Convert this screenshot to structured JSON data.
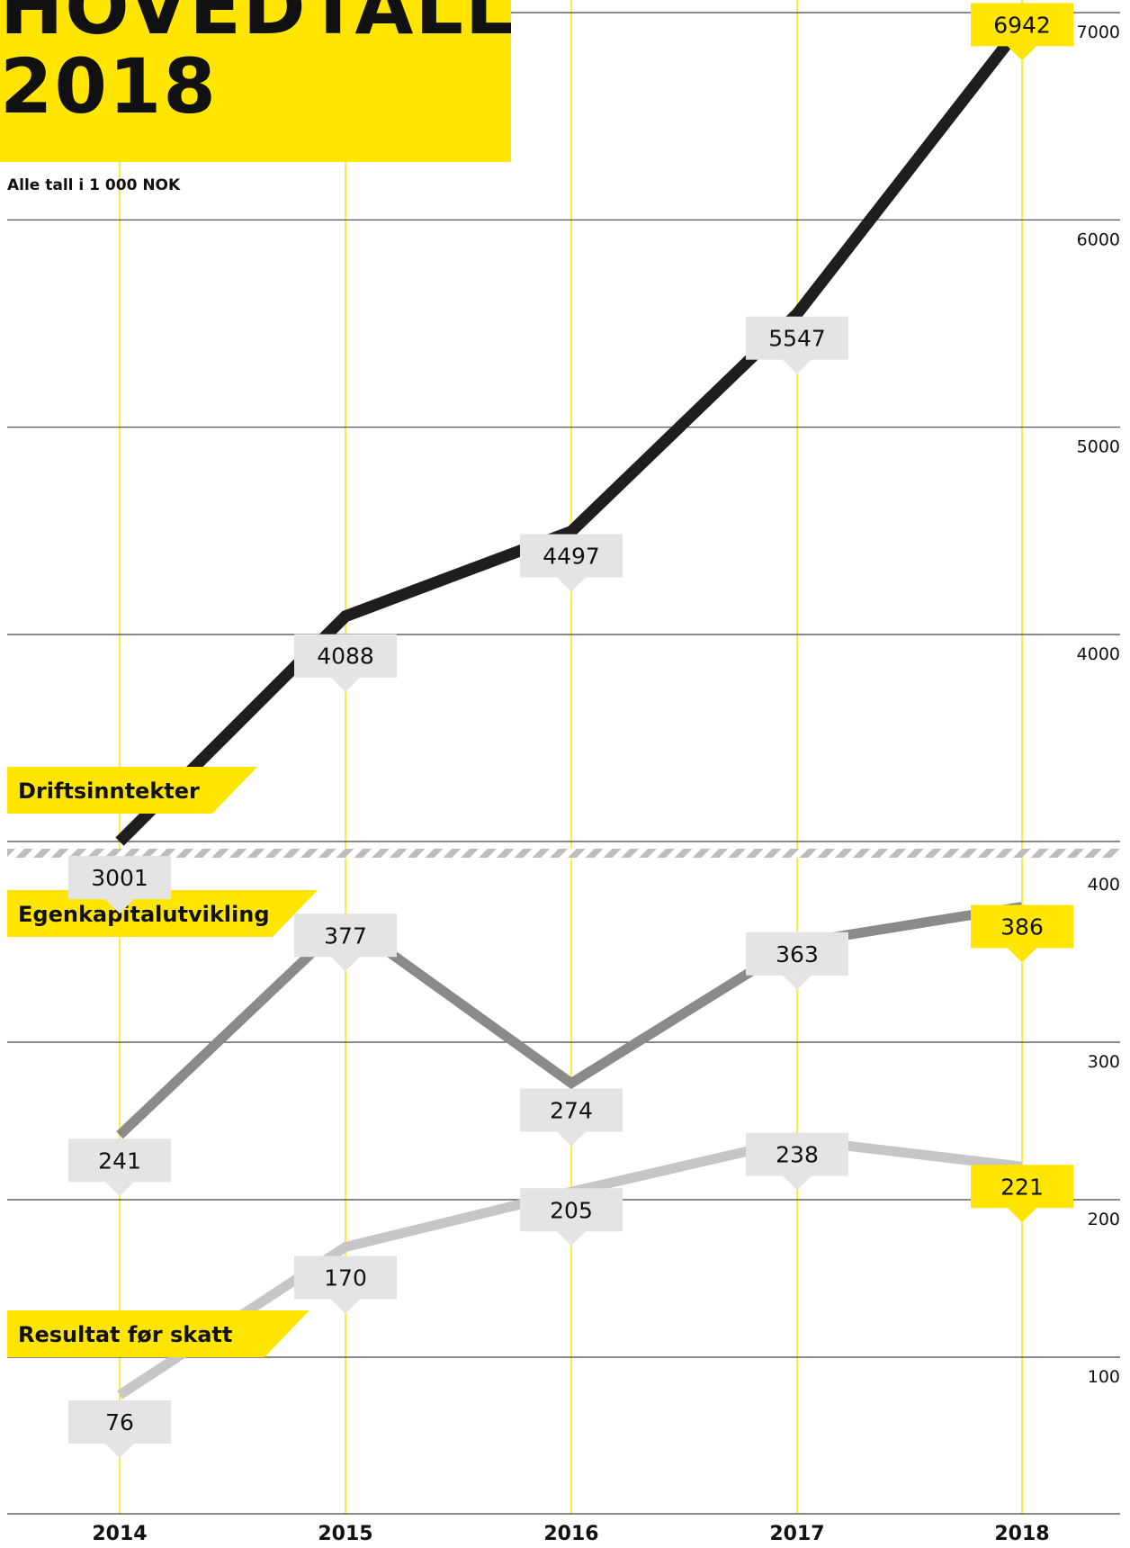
{
  "title": {
    "line1": "HOVEDTALL",
    "line2": "2018"
  },
  "subtitle": "Alle tall i 1 000 NOK",
  "colors": {
    "accent": "#ffe500",
    "label_bg": "#e4e4e4",
    "driftsinntekter": "#1e1e1e",
    "egenkapitalutvikling": "#8a8a8a",
    "resultat_for_skatt": "#c6c6c6",
    "gridline": "#444444",
    "year_line": "#ffe500"
  },
  "chart_data": [
    {
      "type": "line",
      "x": [
        "2014",
        "2015",
        "2016",
        "2017",
        "2018"
      ],
      "ylim": [
        3000,
        7000
      ],
      "yticks": [
        "4000",
        "5000",
        "6000",
        "7000"
      ],
      "series": [
        {
          "name": "Driftsinntekter",
          "values": [
            3001,
            4088,
            4497,
            5547,
            6942
          ],
          "highlight_last": true
        }
      ]
    },
    {
      "type": "line",
      "x": [
        "2014",
        "2015",
        "2016",
        "2017",
        "2018"
      ],
      "ylim": [
        0,
        400
      ],
      "yticks": [
        "100",
        "200",
        "300",
        "400"
      ],
      "series": [
        {
          "name": "Egenkapitalutvikling",
          "values": [
            241,
            377,
            274,
            363,
            386
          ],
          "highlight_last": true
        },
        {
          "name": "Resultat før skatt",
          "values": [
            76,
            170,
            205,
            238,
            221
          ],
          "highlight_last": true
        }
      ]
    }
  ]
}
